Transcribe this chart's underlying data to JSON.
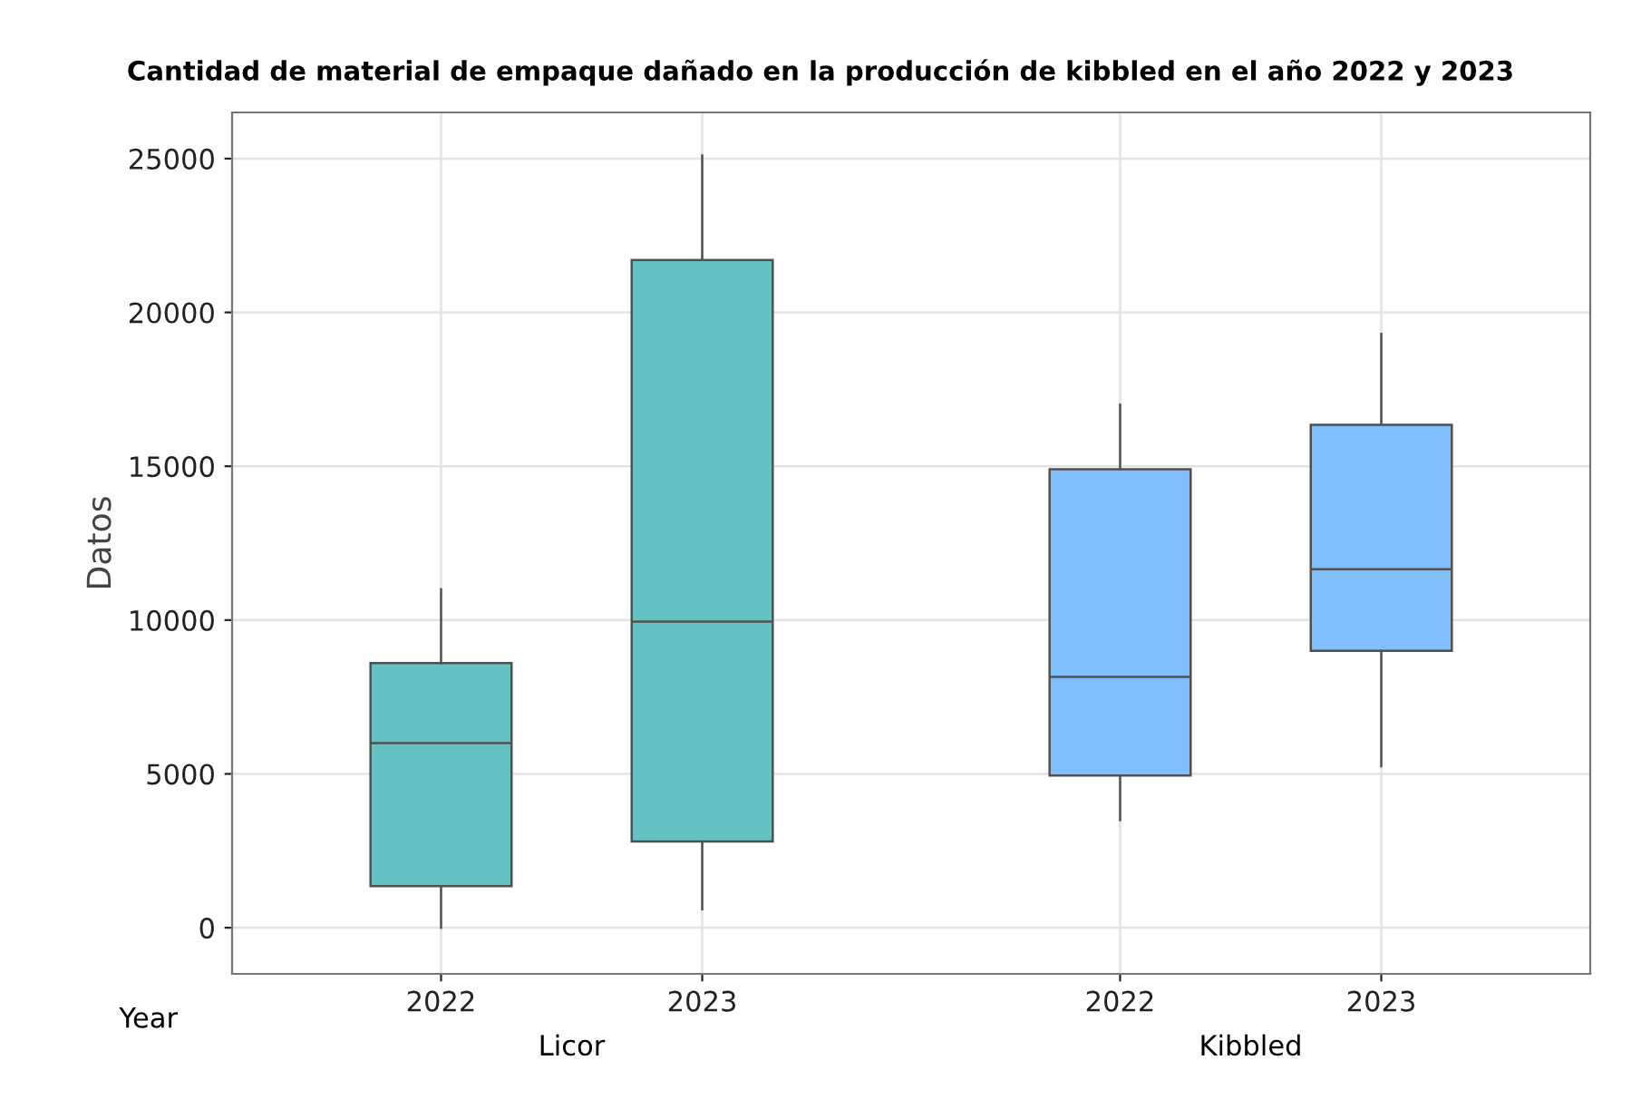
{
  "chart_data": {
    "type": "box",
    "title": "Cantidad de material de empaque dañado en la producción de kibbled en el año 2022 y 2023",
    "ylabel": "Datos",
    "xlabel": "Year",
    "categories": [
      "2022",
      "2023",
      "2022",
      "2023"
    ],
    "series": [
      {
        "color": "#66c2c2",
        "boxes": [
          {
            "low": 0,
            "q1": 1350,
            "median": 6000,
            "q3": 8600,
            "high": 11000
          },
          {
            "low": 600,
            "q1": 2800,
            "median": 9950,
            "q3": 21700,
            "high": 25100
          },
          null,
          null
        ]
      },
      {
        "color": "#80bfff",
        "boxes": [
          null,
          null,
          {
            "low": 3500,
            "q1": 4950,
            "median": 8150,
            "q3": 14900,
            "high": 17000
          },
          {
            "low": 5250,
            "q1": 9000,
            "median": 11650,
            "q3": 16350,
            "high": 19300
          }
        ]
      }
    ],
    "ylim": [
      -1500,
      26500
    ],
    "yticks": [
      0,
      5000,
      10000,
      15000,
      20000,
      25000
    ],
    "grid": true,
    "annotations": [
      "Licor",
      "Kibbled"
    ]
  }
}
